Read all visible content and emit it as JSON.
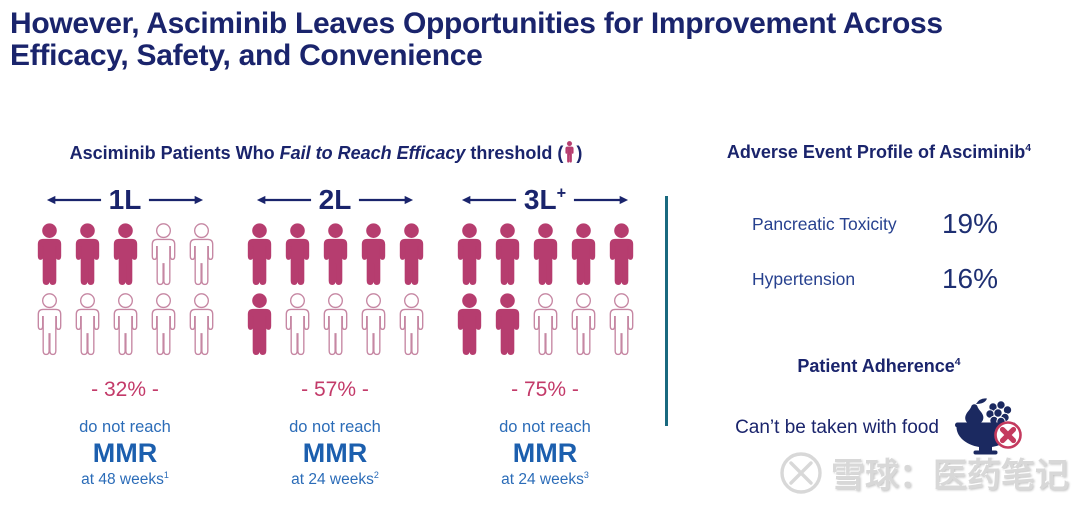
{
  "title": {
    "line1": "However, Asciminib Leaves Opportunities for Improvement Across",
    "line2": "Efficacy, Safety, and Convenience"
  },
  "colors": {
    "navy": "#1A246C",
    "body_blue": "#2B6CB8",
    "mmr_blue": "#1C5FAE",
    "crimson": "#C33A69",
    "person_fill": "#B63D6F",
    "person_outline": "#C687A3",
    "teal_divider": "#19697F",
    "watermark_gray": "#D8D8D8"
  },
  "left_panel": {
    "heading": {
      "prefix": "Asciminib Patients Who ",
      "italic": "Fail to Reach Efficacy",
      "suffix": " threshold (",
      "close": ")",
      "icon": "person-icon"
    },
    "groups": [
      {
        "label": "1L",
        "label_sup": "",
        "rows": [
          {
            "filled": 3,
            "total": 5
          },
          {
            "filled": 0,
            "total": 5
          }
        ],
        "percent": "- 32% -",
        "line1": "do not reach",
        "line2": "MMR",
        "line3": "at 48 weeks",
        "footnote": "1"
      },
      {
        "label": "2L",
        "label_sup": "",
        "rows": [
          {
            "filled": 5,
            "total": 5
          },
          {
            "filled": 1,
            "total": 5
          }
        ],
        "percent": "- 57% -",
        "line1": "do not reach",
        "line2": "MMR",
        "line3": "at 24 weeks",
        "footnote": "2"
      },
      {
        "label": "3L",
        "label_sup": "+",
        "rows": [
          {
            "filled": 5,
            "total": 5
          },
          {
            "filled": 2,
            "total": 5
          }
        ],
        "percent": "- 75% -",
        "line1": "do not reach",
        "line2": "MMR",
        "line3": "at 24 weeks",
        "footnote": "3"
      }
    ]
  },
  "right_panel": {
    "ae_heading": "Adverse Event Profile of Asciminib",
    "ae_heading_sup": "4",
    "adverse_events": [
      {
        "label": "Pancreatic Toxicity",
        "value": "19%"
      },
      {
        "label": "Hypertension",
        "value": "16%"
      }
    ],
    "adherence_heading": "Patient Adherence",
    "adherence_sup": "4",
    "food_text": "Can’t be taken with food",
    "food_icon": "no-food-bowl-icon"
  },
  "watermark": {
    "logo": "xueqiu-logo",
    "text": "雪球：医药笔记"
  },
  "chart_data": {
    "type": "bar",
    "style": "pictograph",
    "title": "Asciminib Patients Who Fail to Reach Efficacy threshold",
    "categories": [
      "1L",
      "2L",
      "3L+"
    ],
    "series": [
      {
        "name": "% of patients who do not reach MMR",
        "values": [
          32,
          57,
          75
        ]
      }
    ],
    "filled_icons_of_10": [
      3,
      6,
      7
    ],
    "timepoints": [
      "at 48 weeks",
      "at 24 weeks",
      "at 24 weeks"
    ],
    "adverse_events": {
      "Pancreatic Toxicity": 19,
      "Hypertension": 16
    }
  }
}
